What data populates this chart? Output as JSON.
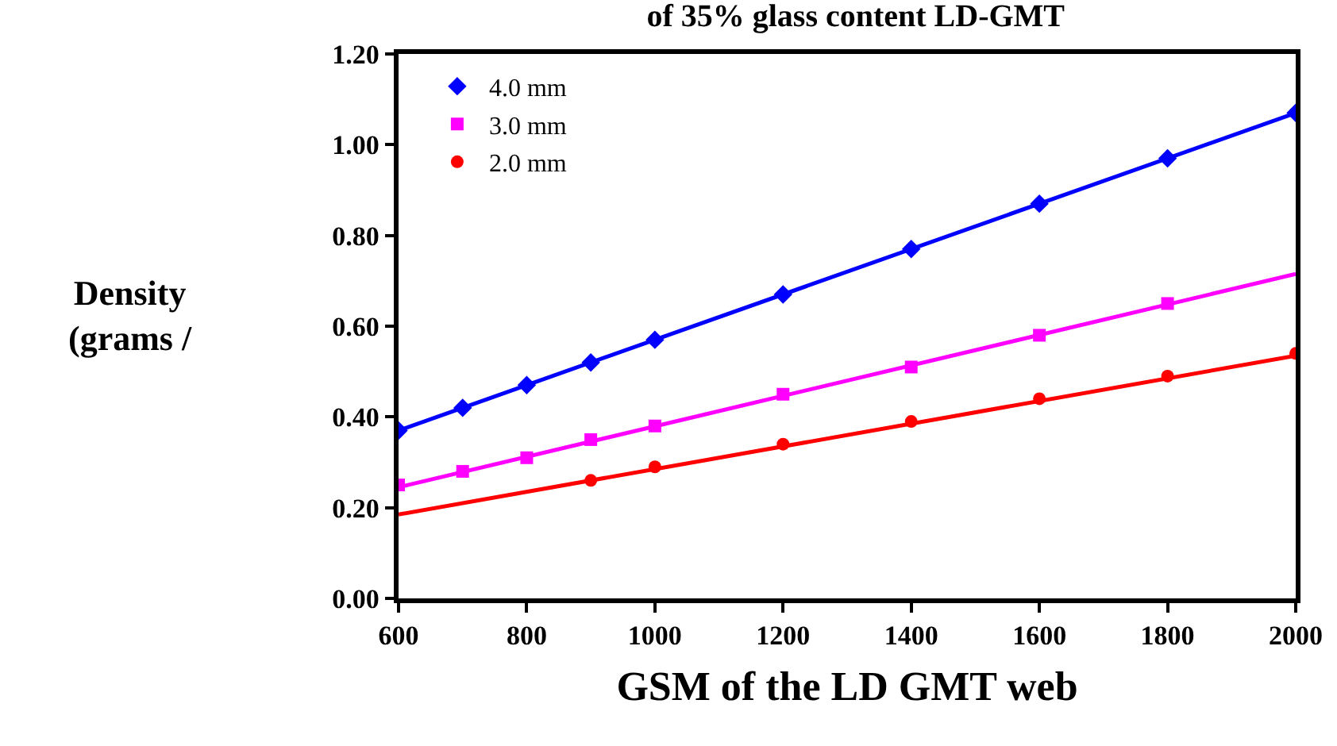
{
  "chart_data": {
    "type": "scatter",
    "title": "of 35% glass content LD-GMT",
    "xlabel": "GSM of the LD GMT web",
    "ylabel": "Density\n(grams /",
    "xlim": [
      600,
      2000
    ],
    "xticks": [
      600,
      800,
      1000,
      1200,
      1400,
      1600,
      1800,
      2000
    ],
    "ylim": [
      0,
      1.2
    ],
    "yticks": [
      {
        "value": 0,
        "label": "0.00"
      },
      {
        "value": 0.2,
        "label": "0.20"
      },
      {
        "value": 0.4,
        "label": "0.40"
      },
      {
        "value": 0.6,
        "label": "0.60"
      },
      {
        "value": 0.8,
        "label": "0.80"
      },
      {
        "value": 1.0,
        "label": "1.00"
      },
      {
        "value": 1.2,
        "label": "1.20"
      }
    ],
    "grid": false,
    "legend": "top left",
    "series": [
      {
        "name": "4.0 mm",
        "color": "#0000ff",
        "marker": "diamond",
        "x": [
          600,
          700,
          800,
          900,
          1000,
          1200,
          1400,
          1600,
          1800,
          2000
        ],
        "values": [
          0.37,
          0.42,
          0.47,
          0.52,
          0.57,
          0.67,
          0.77,
          0.87,
          0.97,
          1.07
        ]
      },
      {
        "name": "3.0 mm",
        "color": "#ff00ff",
        "marker": "square",
        "x": [
          600,
          700,
          800,
          900,
          1000,
          1200,
          1400,
          1600,
          1800
        ],
        "values": [
          0.25,
          0.28,
          0.31,
          0.35,
          0.38,
          0.45,
          0.51,
          0.58,
          0.65
        ]
      },
      {
        "name": "2.0 mm",
        "color": "#ff0000",
        "marker": "circle",
        "x": [
          900,
          1000,
          1200,
          1400,
          1600,
          1800,
          2000
        ],
        "values": [
          0.26,
          0.29,
          0.34,
          0.39,
          0.44,
          0.49,
          0.54
        ]
      },
      {
        "type": "line",
        "color": "#0000ff",
        "x": [
          600,
          2000
        ],
        "values": [
          0.37,
          1.07
        ]
      },
      {
        "type": "line",
        "color": "#ff00ff",
        "x": [
          600,
          2000
        ],
        "values": [
          0.245,
          0.715
        ]
      },
      {
        "type": "line",
        "color": "#ff0000",
        "x": [
          600,
          2000
        ],
        "values": [
          0.185,
          0.535
        ]
      }
    ]
  }
}
